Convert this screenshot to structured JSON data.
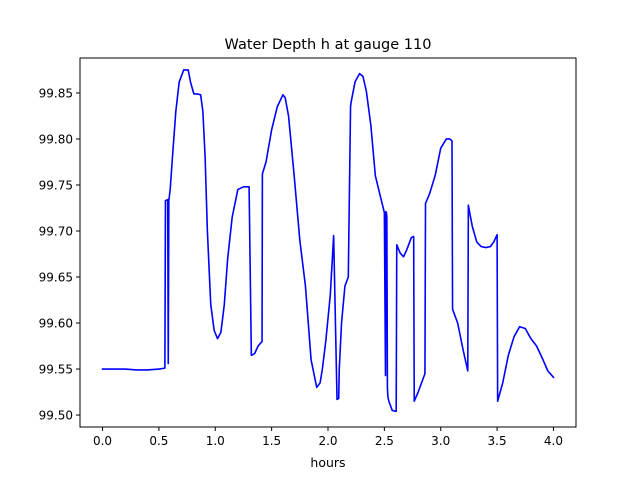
{
  "chart_data": {
    "type": "line",
    "title": "Water Depth h at gauge 110",
    "xlabel": "hours",
    "ylabel": "",
    "xlim": [
      -0.2,
      4.2
    ],
    "ylim": [
      99.487,
      99.888
    ],
    "xticks": [
      0.0,
      0.5,
      1.0,
      1.5,
      2.0,
      2.5,
      3.0,
      3.5,
      4.0
    ],
    "xtick_labels": [
      "0.0",
      "0.5",
      "1.0",
      "1.5",
      "2.0",
      "2.5",
      "3.0",
      "3.5",
      "4.0"
    ],
    "yticks": [
      99.5,
      99.55,
      99.6,
      99.65,
      99.7,
      99.75,
      99.8,
      99.85
    ],
    "ytick_labels": [
      "99.50",
      "99.55",
      "99.60",
      "99.65",
      "99.70",
      "99.75",
      "99.80",
      "99.85"
    ],
    "grid": false,
    "legend": false,
    "series": [
      {
        "color": "#0000ff",
        "x": [
          0.0,
          0.1,
          0.2,
          0.3,
          0.4,
          0.5,
          0.553,
          0.558,
          0.578,
          0.583,
          0.588,
          0.6,
          0.62,
          0.65,
          0.68,
          0.72,
          0.76,
          0.78,
          0.81,
          0.84,
          0.87,
          0.89,
          0.91,
          0.93,
          0.96,
          0.99,
          1.02,
          1.05,
          1.08,
          1.11,
          1.15,
          1.2,
          1.25,
          1.3,
          1.32,
          1.325,
          1.35,
          1.38,
          1.415,
          1.418,
          1.45,
          1.5,
          1.55,
          1.6,
          1.62,
          1.65,
          1.7,
          1.75,
          1.8,
          1.85,
          1.9,
          1.93,
          1.95,
          1.98,
          2.02,
          2.05,
          2.08,
          2.095,
          2.1,
          2.12,
          2.15,
          2.18,
          2.2,
          2.205,
          2.24,
          2.28,
          2.31,
          2.34,
          2.38,
          2.42,
          2.47,
          2.5,
          2.51,
          2.513,
          2.518,
          2.522,
          2.527,
          2.531,
          2.54,
          2.57,
          2.605,
          2.61,
          2.64,
          2.67,
          2.7,
          2.74,
          2.76,
          2.765,
          2.8,
          2.86,
          2.865,
          2.9,
          2.95,
          3.0,
          3.05,
          3.08,
          3.1,
          3.105,
          3.15,
          3.2,
          3.24,
          3.245,
          3.28,
          3.32,
          3.36,
          3.4,
          3.44,
          3.47,
          3.5,
          3.505,
          3.55,
          3.6,
          3.65,
          3.7,
          3.75,
          3.8,
          3.85,
          3.9,
          3.95,
          4.0
        ],
        "y": [
          99.55,
          99.55,
          99.55,
          99.549,
          99.549,
          99.55,
          99.551,
          99.733,
          99.734,
          99.556,
          99.733,
          99.745,
          99.78,
          99.83,
          99.862,
          99.875,
          99.875,
          99.862,
          99.849,
          99.849,
          99.848,
          99.83,
          99.78,
          99.7,
          99.62,
          99.592,
          99.583,
          99.59,
          99.62,
          99.67,
          99.715,
          99.745,
          99.748,
          99.748,
          99.565,
          99.565,
          99.567,
          99.575,
          99.58,
          99.762,
          99.775,
          99.81,
          99.835,
          99.848,
          99.845,
          99.825,
          99.76,
          99.69,
          99.64,
          99.56,
          99.53,
          99.535,
          99.55,
          99.58,
          99.63,
          99.695,
          99.517,
          99.518,
          99.55,
          99.6,
          99.64,
          99.65,
          99.835,
          99.84,
          99.862,
          99.871,
          99.868,
          99.852,
          99.815,
          99.76,
          99.735,
          99.72,
          99.543,
          99.721,
          99.72,
          99.715,
          99.53,
          99.52,
          99.515,
          99.505,
          99.504,
          99.685,
          99.676,
          99.672,
          99.68,
          99.693,
          99.694,
          99.515,
          99.525,
          99.545,
          99.73,
          99.74,
          99.76,
          99.79,
          99.8,
          99.8,
          99.798,
          99.615,
          99.6,
          99.57,
          99.548,
          99.728,
          99.705,
          99.688,
          99.683,
          99.682,
          99.683,
          99.688,
          99.696,
          99.515,
          99.535,
          99.565,
          99.585,
          99.596,
          99.594,
          99.583,
          99.575,
          99.562,
          99.548,
          99.541
        ]
      }
    ]
  }
}
